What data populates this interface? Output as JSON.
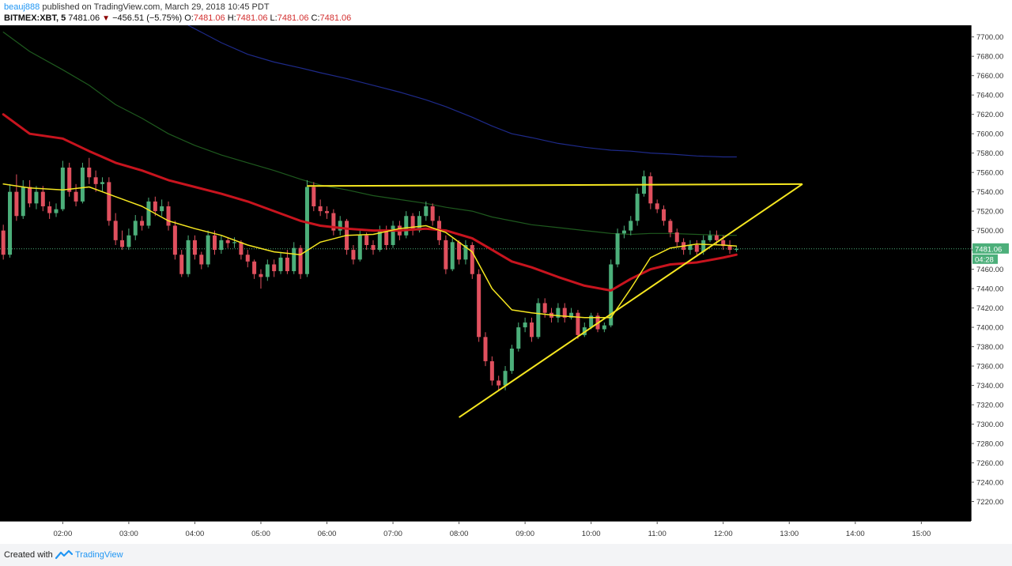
{
  "header": {
    "publisher": "beauj888",
    "published_text": "published on TradingView.com, March 29, 2018 10:45 PDT",
    "symbol": "BITMEX:XBT, 5",
    "last": "7481.06",
    "change": "−456.51 (−5.75%)",
    "ohlc": [
      {
        "label": "O:",
        "value": "7481.06"
      },
      {
        "label": "H:",
        "value": "7481.06"
      },
      {
        "label": "L:",
        "value": "7481.06"
      },
      {
        "label": "C:",
        "value": "7481.06"
      }
    ]
  },
  "footer": {
    "created_with": "Created with",
    "brand": "TradingView"
  },
  "colors": {
    "background": "#000000",
    "up": "#4caf7a",
    "down": "#e0505e",
    "ma_fast": "#f5e620",
    "ma_mid": "#c8141e",
    "ma_slow": "#1e5a1e",
    "ma_long": "#1e2a8a",
    "trendline": "#f5e620",
    "price_tag": "#4caf7a"
  },
  "chart_data": {
    "type": "candlestick",
    "x_axis": {
      "ticks": [
        {
          "label": "02:00",
          "t": 2
        },
        {
          "label": "03:00",
          "t": 3
        },
        {
          "label": "04:00",
          "t": 4
        },
        {
          "label": "05:00",
          "t": 5
        },
        {
          "label": "06:00",
          "t": 6
        },
        {
          "label": "07:00",
          "t": 7
        },
        {
          "label": "08:00",
          "t": 8
        },
        {
          "label": "09:00",
          "t": 9
        },
        {
          "label": "10:00",
          "t": 10
        },
        {
          "label": "11:00",
          "t": 11
        },
        {
          "label": "12:00",
          "t": 12
        },
        {
          "label": "13:00",
          "t": 13
        },
        {
          "label": "14:00",
          "t": 14
        },
        {
          "label": "15:00",
          "t": 15
        }
      ],
      "range": [
        1.05,
        15.75
      ]
    },
    "y_axis": {
      "ticks": [
        "7220.00",
        "7240.00",
        "7260.00",
        "7280.00",
        "7300.00",
        "7320.00",
        "7340.00",
        "7360.00",
        "7380.00",
        "7400.00",
        "7420.00",
        "7440.00",
        "7460.00",
        "7480.00",
        "7500.00",
        "7520.00",
        "7540.00",
        "7560.00",
        "7580.00",
        "7600.00",
        "7620.00",
        "7640.00",
        "7660.00",
        "7680.00",
        "7700.00"
      ],
      "range": [
        7200,
        7712
      ]
    },
    "current_price": {
      "label": "7481.06",
      "value": 7481.06
    },
    "countdown": "04:28",
    "candles": [
      [
        1.1,
        7500,
        7475,
        7506,
        7470
      ],
      [
        1.2,
        7475,
        7540,
        7548,
        7472
      ],
      [
        1.3,
        7540,
        7515,
        7558,
        7510
      ],
      [
        1.4,
        7515,
        7545,
        7552,
        7512
      ],
      [
        1.5,
        7545,
        7528,
        7552,
        7524
      ],
      [
        1.6,
        7528,
        7540,
        7546,
        7522
      ],
      [
        1.7,
        7540,
        7525,
        7546,
        7520
      ],
      [
        1.8,
        7525,
        7518,
        7530,
        7512
      ],
      [
        1.9,
        7518,
        7522,
        7528,
        7514
      ],
      [
        2.0,
        7522,
        7565,
        7572,
        7520
      ],
      [
        2.1,
        7565,
        7540,
        7570,
        7535
      ],
      [
        2.2,
        7540,
        7530,
        7548,
        7525
      ],
      [
        2.3,
        7530,
        7565,
        7570,
        7528
      ],
      [
        2.4,
        7565,
        7555,
        7575,
        7548
      ],
      [
        2.5,
        7555,
        7548,
        7562,
        7540
      ],
      [
        2.6,
        7548,
        7550,
        7555,
        7540
      ],
      [
        2.7,
        7550,
        7510,
        7555,
        7505
      ],
      [
        2.8,
        7510,
        7490,
        7518,
        7485
      ],
      [
        2.9,
        7490,
        7483,
        7500,
        7480
      ],
      [
        3.0,
        7483,
        7495,
        7502,
        7480
      ],
      [
        3.1,
        7495,
        7510,
        7516,
        7490
      ],
      [
        3.2,
        7510,
        7505,
        7515,
        7500
      ],
      [
        3.3,
        7505,
        7530,
        7534,
        7502
      ],
      [
        3.4,
        7530,
        7520,
        7535,
        7515
      ],
      [
        3.5,
        7520,
        7525,
        7532,
        7515
      ],
      [
        3.6,
        7525,
        7505,
        7530,
        7500
      ],
      [
        3.7,
        7505,
        7475,
        7510,
        7470
      ],
      [
        3.8,
        7475,
        7455,
        7480,
        7452
      ],
      [
        3.9,
        7455,
        7490,
        7495,
        7452
      ],
      [
        4.0,
        7490,
        7475,
        7495,
        7470
      ],
      [
        4.1,
        7475,
        7465,
        7478,
        7460
      ],
      [
        4.2,
        7465,
        7495,
        7500,
        7462
      ],
      [
        4.3,
        7495,
        7480,
        7500,
        7475
      ],
      [
        4.4,
        7480,
        7490,
        7495,
        7476
      ],
      [
        4.5,
        7490,
        7487,
        7492,
        7482
      ],
      [
        4.6,
        7487,
        7488,
        7493,
        7482
      ],
      [
        4.7,
        7488,
        7475,
        7490,
        7470
      ],
      [
        4.8,
        7475,
        7468,
        7480,
        7462
      ],
      [
        4.9,
        7468,
        7455,
        7470,
        7450
      ],
      [
        5.0,
        7455,
        7452,
        7460,
        7440
      ],
      [
        5.1,
        7452,
        7465,
        7470,
        7448
      ],
      [
        5.2,
        7465,
        7458,
        7470,
        7452
      ],
      [
        5.3,
        7458,
        7472,
        7478,
        7455
      ],
      [
        5.4,
        7472,
        7458,
        7480,
        7455
      ],
      [
        5.5,
        7458,
        7482,
        7488,
        7455
      ],
      [
        5.6,
        7482,
        7455,
        7485,
        7450
      ],
      [
        5.7,
        7455,
        7545,
        7552,
        7452
      ],
      [
        5.8,
        7545,
        7525,
        7550,
        7520
      ],
      [
        5.9,
        7525,
        7520,
        7532,
        7515
      ],
      [
        6.0,
        7520,
        7518,
        7525,
        7512
      ],
      [
        6.1,
        7518,
        7500,
        7522,
        7495
      ],
      [
        6.2,
        7500,
        7510,
        7515,
        7495
      ],
      [
        6.3,
        7510,
        7480,
        7512,
        7475
      ],
      [
        6.4,
        7480,
        7470,
        7485,
        7465
      ],
      [
        6.5,
        7470,
        7495,
        7500,
        7468
      ],
      [
        6.6,
        7495,
        7485,
        7498,
        7480
      ],
      [
        6.7,
        7485,
        7480,
        7490,
        7475
      ],
      [
        6.8,
        7480,
        7500,
        7505,
        7478
      ],
      [
        6.9,
        7500,
        7485,
        7505,
        7480
      ],
      [
        7.0,
        7485,
        7505,
        7510,
        7482
      ],
      [
        7.1,
        7505,
        7495,
        7510,
        7490
      ],
      [
        7.2,
        7495,
        7515,
        7520,
        7492
      ],
      [
        7.3,
        7515,
        7500,
        7518,
        7495
      ],
      [
        7.4,
        7500,
        7515,
        7520,
        7498
      ],
      [
        7.5,
        7515,
        7525,
        7530,
        7510
      ],
      [
        7.6,
        7525,
        7510,
        7528,
        7505
      ],
      [
        7.7,
        7510,
        7490,
        7515,
        7485
      ],
      [
        7.8,
        7490,
        7460,
        7495,
        7455
      ],
      [
        7.9,
        7460,
        7488,
        7492,
        7458
      ],
      [
        8.0,
        7488,
        7470,
        7490,
        7465
      ],
      [
        8.1,
        7470,
        7485,
        7490,
        7465
      ],
      [
        8.2,
        7485,
        7455,
        7488,
        7450
      ],
      [
        8.3,
        7455,
        7390,
        7460,
        7385
      ],
      [
        8.4,
        7390,
        7365,
        7395,
        7360
      ],
      [
        8.5,
        7365,
        7345,
        7370,
        7340
      ],
      [
        8.6,
        7345,
        7340,
        7350,
        7335
      ],
      [
        8.7,
        7340,
        7355,
        7360,
        7335
      ],
      [
        8.8,
        7355,
        7378,
        7382,
        7352
      ],
      [
        8.9,
        7378,
        7400,
        7405,
        7375
      ],
      [
        9.0,
        7400,
        7405,
        7410,
        7395
      ],
      [
        9.1,
        7405,
        7390,
        7410,
        7385
      ],
      [
        9.2,
        7390,
        7425,
        7430,
        7388
      ],
      [
        9.3,
        7425,
        7415,
        7430,
        7410
      ],
      [
        9.4,
        7415,
        7410,
        7420,
        7405
      ],
      [
        9.5,
        7410,
        7420,
        7425,
        7405
      ],
      [
        9.6,
        7420,
        7410,
        7425,
        7405
      ],
      [
        9.7,
        7410,
        7415,
        7420,
        7408
      ],
      [
        9.8,
        7415,
        7392,
        7418,
        7388
      ],
      [
        9.9,
        7392,
        7400,
        7405,
        7390
      ],
      [
        10.0,
        7400,
        7412,
        7415,
        7398
      ],
      [
        10.1,
        7412,
        7398,
        7415,
        7395
      ],
      [
        10.2,
        7398,
        7402,
        7405,
        7395
      ],
      [
        10.3,
        7402,
        7465,
        7470,
        7400
      ],
      [
        10.4,
        7465,
        7497,
        7502,
        7462
      ],
      [
        10.5,
        7497,
        7500,
        7505,
        7492
      ],
      [
        10.6,
        7500,
        7510,
        7515,
        7495
      ],
      [
        10.7,
        7510,
        7538,
        7544,
        7505
      ],
      [
        10.8,
        7538,
        7556,
        7562,
        7535
      ],
      [
        10.9,
        7556,
        7528,
        7560,
        7522
      ],
      [
        11.0,
        7528,
        7522,
        7532,
        7518
      ],
      [
        11.1,
        7522,
        7510,
        7526,
        7505
      ],
      [
        11.2,
        7510,
        7498,
        7512,
        7493
      ],
      [
        11.3,
        7498,
        7488,
        7502,
        7483
      ],
      [
        11.4,
        7488,
        7480,
        7492,
        7475
      ],
      [
        11.5,
        7480,
        7485,
        7490,
        7475
      ],
      [
        11.6,
        7485,
        7478,
        7490,
        7475
      ],
      [
        11.7,
        7478,
        7490,
        7495,
        7475
      ],
      [
        11.8,
        7490,
        7495,
        7500,
        7488
      ],
      [
        11.9,
        7495,
        7490,
        7500,
        7485
      ],
      [
        12.0,
        7490,
        7484,
        7495,
        7480
      ],
      [
        12.1,
        7484,
        7480,
        7490,
        7476
      ],
      [
        12.2,
        7480,
        7481.06,
        7484,
        7478
      ]
    ],
    "ma_fast": [
      [
        1.1,
        7548
      ],
      [
        1.5,
        7544
      ],
      [
        2.0,
        7542
      ],
      [
        2.4,
        7545
      ],
      [
        2.8,
        7535
      ],
      [
        3.2,
        7525
      ],
      [
        3.6,
        7510
      ],
      [
        4.0,
        7502
      ],
      [
        4.4,
        7495
      ],
      [
        4.8,
        7485
      ],
      [
        5.2,
        7478
      ],
      [
        5.6,
        7475
      ],
      [
        5.9,
        7488
      ],
      [
        6.3,
        7495
      ],
      [
        6.7,
        7496
      ],
      [
        7.1,
        7502
      ],
      [
        7.5,
        7505
      ],
      [
        7.8,
        7498
      ],
      [
        8.2,
        7478
      ],
      [
        8.5,
        7440
      ],
      [
        8.8,
        7418
      ],
      [
        9.1,
        7415
      ],
      [
        9.5,
        7412
      ],
      [
        9.9,
        7410
      ],
      [
        10.3,
        7410
      ],
      [
        10.6,
        7440
      ],
      [
        10.9,
        7472
      ],
      [
        11.2,
        7482
      ],
      [
        11.6,
        7486
      ],
      [
        12.0,
        7485
      ],
      [
        12.2,
        7484
      ]
    ],
    "ma_mid": [
      [
        1.1,
        7620
      ],
      [
        1.5,
        7600
      ],
      [
        2.0,
        7595
      ],
      [
        2.4,
        7582
      ],
      [
        2.8,
        7570
      ],
      [
        3.2,
        7562
      ],
      [
        3.6,
        7552
      ],
      [
        4.0,
        7545
      ],
      [
        4.4,
        7538
      ],
      [
        4.8,
        7530
      ],
      [
        5.2,
        7520
      ],
      [
        5.6,
        7510
      ],
      [
        5.9,
        7505
      ],
      [
        6.3,
        7502
      ],
      [
        6.7,
        7500
      ],
      [
        7.1,
        7500
      ],
      [
        7.5,
        7502
      ],
      [
        7.8,
        7500
      ],
      [
        8.2,
        7492
      ],
      [
        8.5,
        7480
      ],
      [
        8.8,
        7468
      ],
      [
        9.1,
        7462
      ],
      [
        9.5,
        7452
      ],
      [
        9.9,
        7443
      ],
      [
        10.3,
        7438
      ],
      [
        10.6,
        7450
      ],
      [
        10.9,
        7460
      ],
      [
        11.2,
        7465
      ],
      [
        11.6,
        7467
      ],
      [
        12.0,
        7472
      ],
      [
        12.2,
        7475
      ]
    ],
    "ma_slow": [
      [
        1.1,
        7705
      ],
      [
        1.5,
        7685
      ],
      [
        2.0,
        7666
      ],
      [
        2.4,
        7650
      ],
      [
        2.8,
        7630
      ],
      [
        3.2,
        7616
      ],
      [
        3.6,
        7600
      ],
      [
        4.0,
        7588
      ],
      [
        4.4,
        7578
      ],
      [
        4.8,
        7570
      ],
      [
        5.2,
        7562
      ],
      [
        5.6,
        7553
      ],
      [
        5.9,
        7547
      ],
      [
        6.3,
        7542
      ],
      [
        6.7,
        7536
      ],
      [
        7.1,
        7532
      ],
      [
        7.5,
        7528
      ],
      [
        7.8,
        7524
      ],
      [
        8.2,
        7520
      ],
      [
        8.5,
        7514
      ],
      [
        8.8,
        7510
      ],
      [
        9.1,
        7506
      ],
      [
        9.5,
        7503
      ],
      [
        9.9,
        7500
      ],
      [
        10.3,
        7497
      ],
      [
        10.6,
        7496
      ],
      [
        10.9,
        7497
      ],
      [
        11.2,
        7497
      ],
      [
        11.6,
        7496
      ],
      [
        12.0,
        7495
      ],
      [
        12.2,
        7495
      ]
    ],
    "ma_long": [
      [
        3.9,
        7712
      ],
      [
        4.4,
        7694
      ],
      [
        4.8,
        7682
      ],
      [
        5.2,
        7674
      ],
      [
        5.6,
        7668
      ],
      [
        5.9,
        7663
      ],
      [
        6.3,
        7657
      ],
      [
        6.7,
        7650
      ],
      [
        7.1,
        7643
      ],
      [
        7.5,
        7635
      ],
      [
        7.8,
        7628
      ],
      [
        8.2,
        7617
      ],
      [
        8.5,
        7608
      ],
      [
        8.8,
        7600
      ],
      [
        9.1,
        7596
      ],
      [
        9.5,
        7590
      ],
      [
        9.9,
        7586
      ],
      [
        10.3,
        7583
      ],
      [
        10.6,
        7582
      ],
      [
        10.9,
        7580
      ],
      [
        11.2,
        7579
      ],
      [
        11.6,
        7577
      ],
      [
        12.0,
        7576
      ],
      [
        12.2,
        7576
      ]
    ],
    "trendlines": [
      {
        "from": [
          5.7,
          7546
        ],
        "to": [
          13.2,
          7548
        ]
      },
      {
        "from": [
          8.0,
          7307
        ],
        "to": [
          13.2,
          7548
        ]
      }
    ]
  }
}
